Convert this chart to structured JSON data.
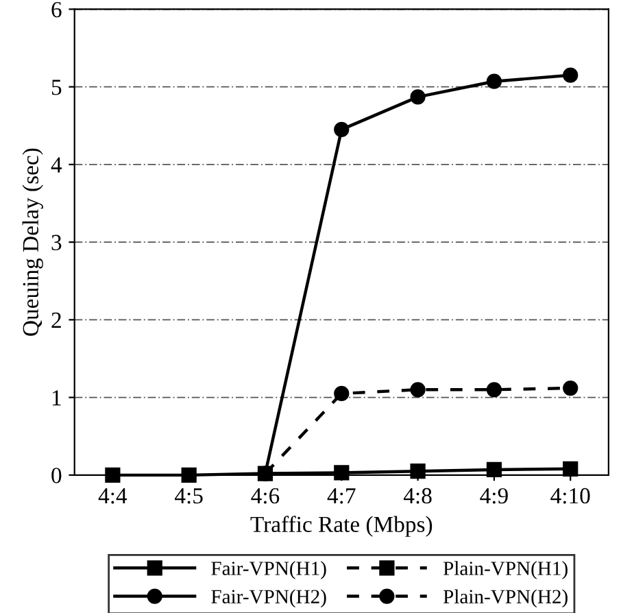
{
  "chart_data": {
    "type": "line",
    "xlabel": "Traffic Rate (Mbps)",
    "ylabel": "Queuing Delay (sec)",
    "categories": [
      "4:4",
      "4:5",
      "4:6",
      "4:7",
      "4:8",
      "4:9",
      "4:10"
    ],
    "series": [
      {
        "name": "Fair-VPN(H1)",
        "color": "#000000",
        "marker": "square",
        "line_style": "solid",
        "values": [
          0,
          0,
          0.02,
          0.03,
          0.05,
          0.07,
          0.08
        ]
      },
      {
        "name": "Fair-VPN(H2)",
        "color": "#000000",
        "marker": "circle",
        "line_style": "solid",
        "values": [
          null,
          null,
          0.02,
          4.45,
          4.87,
          5.07,
          5.15
        ]
      },
      {
        "name": "Plain-VPN(H1)",
        "color": "#000000",
        "marker": "square",
        "line_style": "dashed",
        "values": [
          null,
          null,
          null,
          null,
          null,
          null,
          null
        ]
      },
      {
        "name": "Plain-VPN(H2)",
        "color": "#000000",
        "marker": "circle",
        "line_style": "dashed",
        "values": [
          null,
          null,
          0.02,
          1.05,
          1.1,
          1.1,
          1.12
        ]
      }
    ],
    "ylim": [
      0,
      6
    ],
    "yticks": [
      0,
      1,
      2,
      3,
      4,
      5,
      6
    ],
    "grid": "y",
    "legend": "bottom"
  }
}
